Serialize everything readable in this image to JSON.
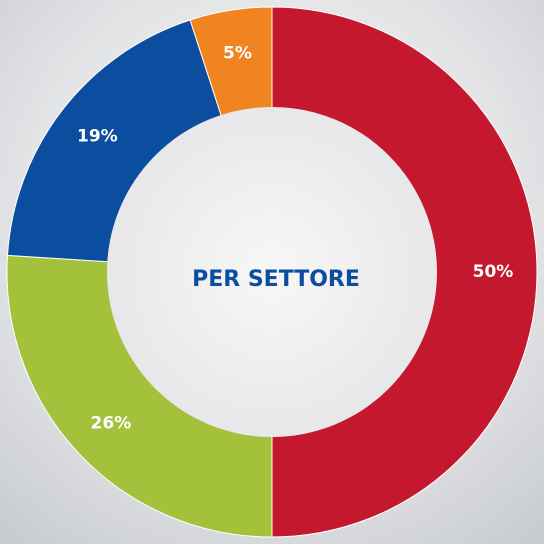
{
  "chart_data": {
    "type": "donut",
    "title": "PER SETTORE",
    "values": [
      50,
      26,
      19,
      5
    ],
    "value_labels": [
      "50%",
      "26%",
      "19%",
      "5%"
    ],
    "colors": [
      "#c4182f",
      "#a3c13a",
      "#0b4d9e",
      "#ef8420"
    ]
  }
}
